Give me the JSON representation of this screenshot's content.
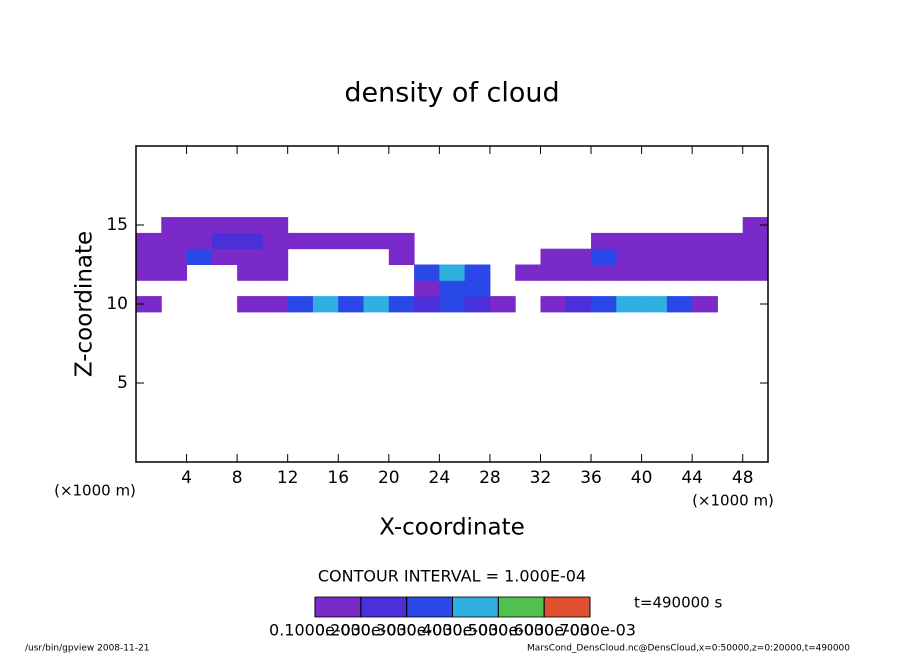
{
  "chart_data": {
    "type": "contour",
    "title": "density of cloud",
    "x_label": "X-coordinate",
    "y_label": "Z-coordinate",
    "x_unit": "(×1000 m)",
    "y_unit": "(×1000 m)",
    "xlim": [
      0,
      50
    ],
    "ylim": [
      0,
      20
    ],
    "xticks": [
      4,
      8,
      12,
      16,
      20,
      24,
      28,
      32,
      36,
      40,
      44,
      48
    ],
    "yticks": [
      5,
      10,
      15
    ],
    "field": {
      "x": [
        1,
        3,
        5,
        7,
        9,
        11,
        13,
        15,
        17,
        19,
        21,
        23,
        25,
        27,
        29,
        31,
        33,
        35,
        37,
        39,
        41,
        43,
        45,
        47,
        49
      ],
      "z": [
        10,
        11,
        12,
        13,
        14,
        15
      ],
      "values": [
        [
          0.00012,
          null,
          null,
          null,
          0.00012,
          0.00015,
          0.0003,
          0.0004,
          0.00035,
          0.0004,
          0.0003,
          0.0002,
          0.0003,
          0.00025,
          0.00015,
          null,
          0.00012,
          0.0002,
          0.0003,
          0.0004,
          0.0004,
          0.0003,
          0.00015,
          null,
          null
        ],
        [
          null,
          null,
          null,
          null,
          null,
          null,
          null,
          null,
          null,
          null,
          null,
          0.00015,
          0.0003,
          0.0003,
          null,
          null,
          null,
          null,
          null,
          null,
          null,
          null,
          null,
          null,
          null
        ],
        [
          0.00015,
          0.00015,
          null,
          null,
          0.00015,
          0.00015,
          null,
          null,
          null,
          null,
          null,
          0.0003,
          0.0004,
          0.0003,
          null,
          0.00015,
          0.00015,
          0.00015,
          0.00015,
          0.00015,
          0.00015,
          0.00015,
          0.00015,
          0.00015,
          0.00015
        ],
        [
          0.00015,
          0.00015,
          0.0003,
          0.00015,
          0.00015,
          0.00015,
          null,
          null,
          null,
          null,
          0.00012,
          null,
          null,
          null,
          null,
          null,
          0.00015,
          0.00015,
          0.0003,
          0.00015,
          0.00015,
          0.00015,
          0.00015,
          0.00015,
          0.00015
        ],
        [
          0.00015,
          0.00015,
          0.00015,
          0.0002,
          0.0002,
          0.00015,
          0.00015,
          0.00012,
          0.00012,
          0.00012,
          0.00012,
          null,
          null,
          null,
          null,
          null,
          null,
          null,
          0.00015,
          0.00015,
          0.00015,
          0.00015,
          0.00015,
          0.00015,
          0.00015
        ],
        [
          null,
          0.00015,
          0.00015,
          0.00015,
          0.00015,
          0.00015,
          null,
          null,
          null,
          null,
          null,
          null,
          null,
          null,
          null,
          null,
          null,
          null,
          null,
          null,
          null,
          null,
          null,
          null,
          0.00015
        ]
      ]
    },
    "colorbar": {
      "ticks": [
        {
          "value": 0.0001,
          "label": "0.1000e-03"
        },
        {
          "value": 0.0002,
          "label": "0.2000e-03"
        },
        {
          "value": 0.0003,
          "label": "0.3000e-03"
        },
        {
          "value": 0.0004,
          "label": "0.4000e-03"
        },
        {
          "value": 0.0005,
          "label": "0.5000e-03"
        },
        {
          "value": 0.0006,
          "label": "0.6000e-03"
        },
        {
          "value": 0.0007,
          "label": "0.7000e-03"
        }
      ],
      "colors": [
        "#7a2ac8",
        "#4a30d8",
        "#2a48e8",
        "#30b0e0",
        "#50c050",
        "#e05030"
      ]
    },
    "contour_interval": "CONTOUR INTERVAL = 1.000E-04",
    "time_label": "t=490000 s",
    "footer_left": "/usr/bin/gpview  2008-11-21",
    "footer_right": "MarsCond_DensCloud.nc@DensCloud,x=0:50000,z=0:20000,t=490000"
  }
}
